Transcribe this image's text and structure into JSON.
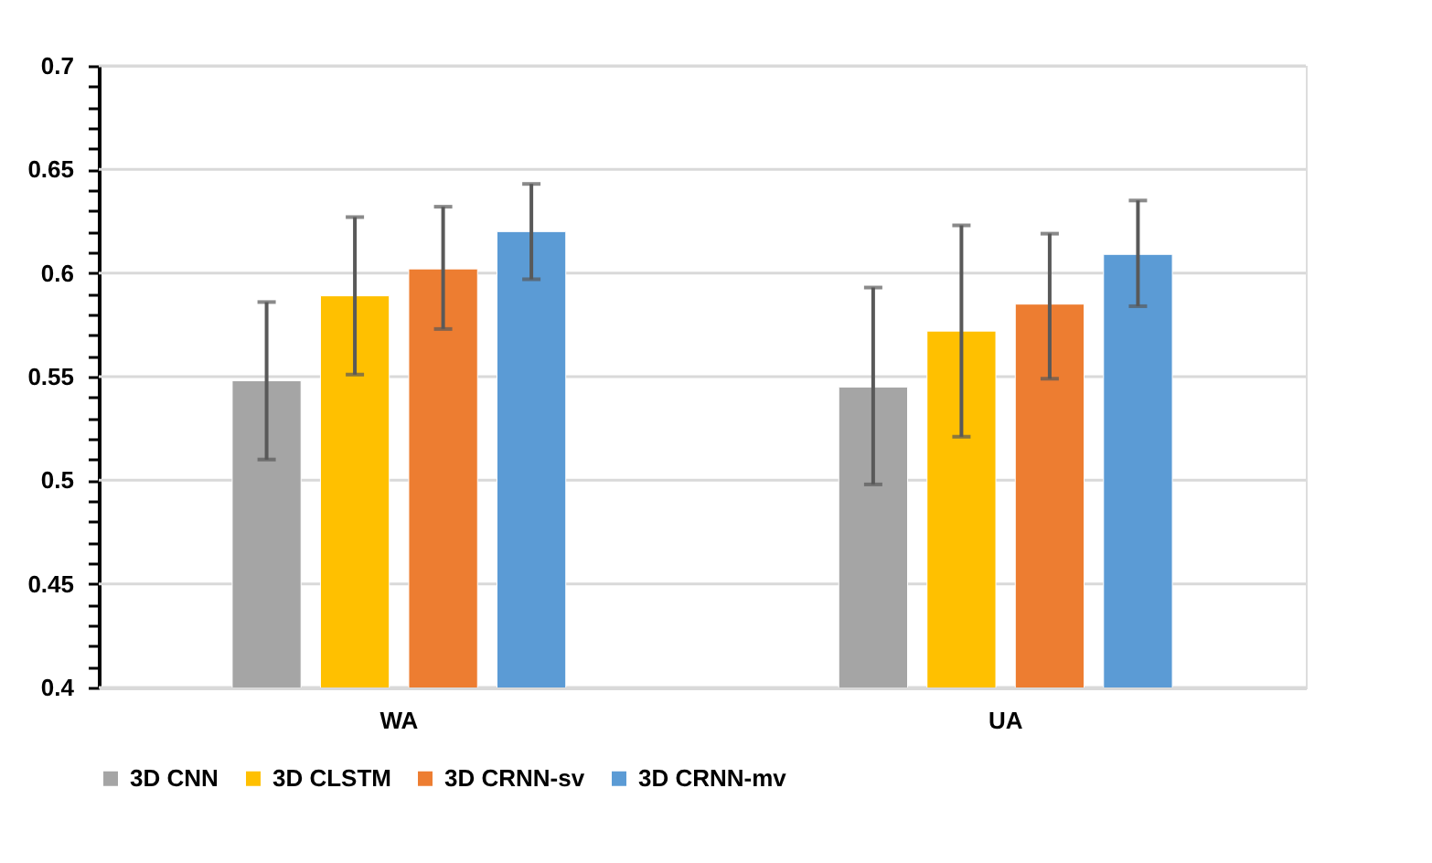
{
  "chart_data": {
    "type": "bar",
    "categories": [
      "WA",
      "UA"
    ],
    "series": [
      {
        "name": "3D CNN",
        "color": "#a5a5a5",
        "values": [
          0.548,
          0.545
        ],
        "errors": [
          [
            0.51,
            0.586
          ],
          [
            0.498,
            0.593
          ]
        ]
      },
      {
        "name": "3D CLSTM",
        "color": "#ffc000",
        "values": [
          0.589,
          0.572
        ],
        "errors": [
          [
            0.551,
            0.627
          ],
          [
            0.521,
            0.623
          ]
        ]
      },
      {
        "name": "3D CRNN-sv",
        "color": "#ed7d31",
        "values": [
          0.602,
          0.585
        ],
        "errors": [
          [
            0.573,
            0.632
          ],
          [
            0.549,
            0.619
          ]
        ]
      },
      {
        "name": "3D CRNN-mv",
        "color": "#5b9bd5",
        "values": [
          0.62,
          0.609
        ],
        "errors": [
          [
            0.597,
            0.643
          ],
          [
            0.584,
            0.635
          ]
        ]
      }
    ],
    "ylim": [
      0.4,
      0.7
    ],
    "yticks": [
      0.4,
      {
        "value": 0.41,
        "label": null
      },
      {
        "value": 0.42,
        "label": null
      },
      {
        "value": 0.43,
        "label": null
      },
      {
        "value": 0.44,
        "label": null
      },
      0.45,
      {
        "value": 0.46,
        "label": null
      },
      {
        "value": 0.47,
        "label": null
      },
      {
        "value": 0.48,
        "label": null
      },
      {
        "value": 0.49,
        "label": null
      },
      0.5,
      {
        "value": 0.51,
        "label": null
      },
      {
        "value": 0.52,
        "label": null
      },
      {
        "value": 0.53,
        "label": null
      },
      {
        "value": 0.54,
        "label": null
      },
      0.55,
      {
        "value": 0.56,
        "label": null
      },
      {
        "value": 0.57,
        "label": null
      },
      {
        "value": 0.58,
        "label": null
      },
      {
        "value": 0.59,
        "label": null
      },
      0.6,
      {
        "value": 0.61,
        "label": null
      },
      {
        "value": 0.62,
        "label": null
      },
      {
        "value": 0.63,
        "label": null
      },
      {
        "value": 0.64,
        "label": null
      },
      0.65,
      {
        "value": 0.66,
        "label": null
      },
      {
        "value": 0.67,
        "label": null
      },
      {
        "value": 0.68,
        "label": null
      },
      {
        "value": 0.69,
        "label": null
      },
      0.7
    ],
    "grid": "y",
    "legend": "bottom"
  }
}
